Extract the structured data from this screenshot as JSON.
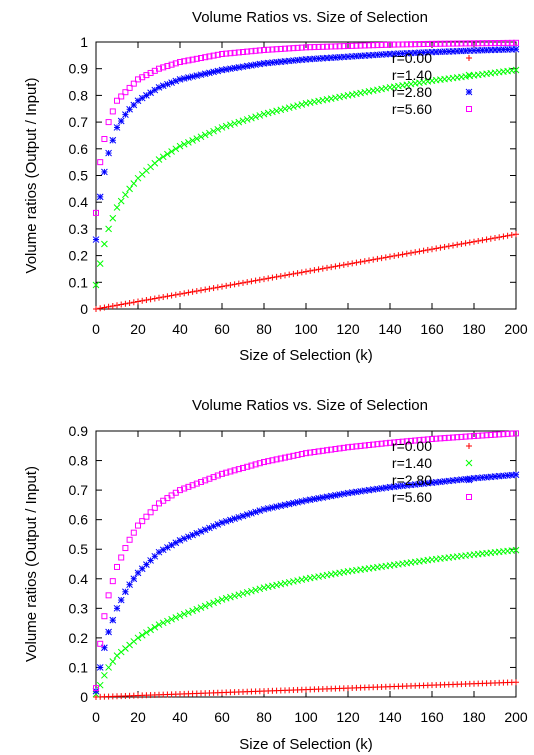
{
  "chart_data": [
    {
      "type": "scatter",
      "title": "Volume Ratios vs. Size of Selection",
      "xlabel": "Size of Selection (k)",
      "ylabel": "Volume ratios (Output / Input)",
      "xlim": [
        0,
        200
      ],
      "ylim": [
        0,
        1
      ],
      "xticks": [
        "0",
        "20",
        "40",
        "60",
        "80",
        "100",
        "120",
        "140",
        "160",
        "180",
        "200"
      ],
      "yticks": [
        "0",
        "0.1",
        "0.2",
        "0.3",
        "0.4",
        "0.5",
        "0.6",
        "0.7",
        "0.8",
        "0.9",
        "1"
      ],
      "grid": false,
      "legend_position": "top-right",
      "series": [
        {
          "name": "r=0.00",
          "color": "#ff0000",
          "marker": "plus",
          "x": [
            0,
            10,
            20,
            40,
            60,
            80,
            100,
            120,
            140,
            160,
            180,
            200
          ],
          "y": [
            0.0,
            0.014,
            0.028,
            0.056,
            0.084,
            0.112,
            0.14,
            0.168,
            0.196,
            0.224,
            0.252,
            0.28
          ]
        },
        {
          "name": "r=1.40",
          "color": "#00ff00",
          "marker": "cross",
          "x": [
            0,
            2,
            5,
            10,
            15,
            20,
            30,
            40,
            60,
            80,
            100,
            120,
            140,
            160,
            180,
            200
          ],
          "y": [
            0.09,
            0.17,
            0.28,
            0.38,
            0.44,
            0.49,
            0.56,
            0.61,
            0.68,
            0.73,
            0.77,
            0.8,
            0.83,
            0.855,
            0.875,
            0.895
          ]
        },
        {
          "name": "r=2.80",
          "color": "#0000ff",
          "marker": "star",
          "x": [
            0,
            2,
            5,
            10,
            15,
            20,
            30,
            40,
            60,
            80,
            100,
            120,
            140,
            160,
            180,
            200
          ],
          "y": [
            0.26,
            0.42,
            0.56,
            0.68,
            0.74,
            0.78,
            0.83,
            0.86,
            0.895,
            0.92,
            0.935,
            0.945,
            0.955,
            0.962,
            0.968,
            0.973
          ]
        },
        {
          "name": "r=5.60",
          "color": "#ff00ff",
          "marker": "square",
          "x": [
            0,
            2,
            5,
            10,
            15,
            20,
            30,
            40,
            60,
            80,
            100,
            120,
            140,
            160,
            180,
            200
          ],
          "y": [
            0.36,
            0.55,
            0.68,
            0.78,
            0.82,
            0.86,
            0.9,
            0.925,
            0.955,
            0.97,
            0.98,
            0.985,
            0.99,
            0.993,
            0.995,
            0.997
          ]
        }
      ]
    },
    {
      "type": "scatter",
      "title": "Volume Ratios vs. Size of Selection",
      "xlabel": "Size of Selection (k)",
      "ylabel": "Volume ratios (Output / Input)",
      "xlim": [
        0,
        200
      ],
      "ylim": [
        0,
        0.9
      ],
      "xticks": [
        "0",
        "20",
        "40",
        "60",
        "80",
        "100",
        "120",
        "140",
        "160",
        "180",
        "200"
      ],
      "yticks": [
        "0",
        "0.1",
        "0.2",
        "0.3",
        "0.4",
        "0.5",
        "0.6",
        "0.7",
        "0.8",
        "0.9"
      ],
      "grid": false,
      "legend_position": "top-right",
      "series": [
        {
          "name": "r=0.00",
          "color": "#ff0000",
          "marker": "plus",
          "x": [
            0,
            20,
            40,
            60,
            80,
            100,
            120,
            140,
            160,
            180,
            200
          ],
          "y": [
            0.0,
            0.005,
            0.01,
            0.015,
            0.02,
            0.025,
            0.03,
            0.035,
            0.04,
            0.045,
            0.05
          ]
        },
        {
          "name": "r=1.40",
          "color": "#00ff00",
          "marker": "cross",
          "x": [
            0,
            2,
            5,
            10,
            15,
            20,
            30,
            40,
            60,
            80,
            100,
            120,
            140,
            160,
            180,
            200
          ],
          "y": [
            0.01,
            0.04,
            0.09,
            0.14,
            0.17,
            0.2,
            0.245,
            0.275,
            0.33,
            0.37,
            0.4,
            0.425,
            0.445,
            0.465,
            0.482,
            0.497
          ]
        },
        {
          "name": "r=2.80",
          "color": "#0000ff",
          "marker": "star",
          "x": [
            0,
            2,
            5,
            10,
            15,
            20,
            30,
            40,
            60,
            80,
            100,
            120,
            140,
            160,
            180,
            200
          ],
          "y": [
            0.02,
            0.1,
            0.2,
            0.3,
            0.37,
            0.42,
            0.49,
            0.53,
            0.59,
            0.635,
            0.665,
            0.69,
            0.71,
            0.725,
            0.74,
            0.752
          ]
        },
        {
          "name": "r=5.60",
          "color": "#ff00ff",
          "marker": "square",
          "x": [
            0,
            2,
            5,
            10,
            15,
            20,
            30,
            40,
            60,
            80,
            100,
            120,
            140,
            160,
            180,
            200
          ],
          "y": [
            0.03,
            0.18,
            0.32,
            0.44,
            0.52,
            0.58,
            0.655,
            0.7,
            0.755,
            0.795,
            0.825,
            0.845,
            0.86,
            0.873,
            0.883,
            0.892
          ]
        }
      ]
    }
  ]
}
